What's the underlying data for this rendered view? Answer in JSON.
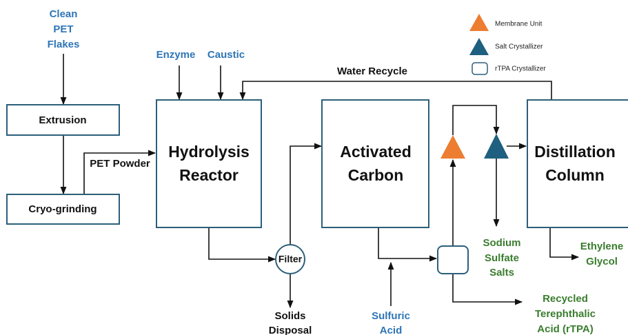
{
  "inputs": {
    "clean_pet_flakes": [
      "Clean",
      "PET",
      "Flakes"
    ],
    "enzyme": "Enzyme",
    "caustic": "Caustic",
    "sulfuric_acid": [
      "Sulfuric",
      "Acid"
    ]
  },
  "units": {
    "extrusion": "Extrusion",
    "cryo_grinding": "Cryo-grinding",
    "hydrolysis_reactor": [
      "Hydrolysis",
      "Reactor"
    ],
    "filter": "Filter",
    "activated_carbon": [
      "Activated",
      "Carbon"
    ],
    "distillation_column": [
      "Distillation",
      "Column"
    ]
  },
  "streams": {
    "pet_powder": "PET Powder",
    "water_recycle": "Water Recycle"
  },
  "outputs": {
    "solids_disposal": [
      "Solids",
      "Disposal"
    ],
    "sodium_sulfate_salts": [
      "Sodium",
      "Sulfate",
      "Salts"
    ],
    "rtpa": [
      "Recycled",
      "Terephthalic",
      "Acid (rTPA)"
    ],
    "ethylene_glycol": [
      "Ethylene",
      "Glycol"
    ]
  },
  "legend": [
    "Membrane Unit",
    "Salt Crystallizer",
    "rTPA Crystallizer"
  ]
}
